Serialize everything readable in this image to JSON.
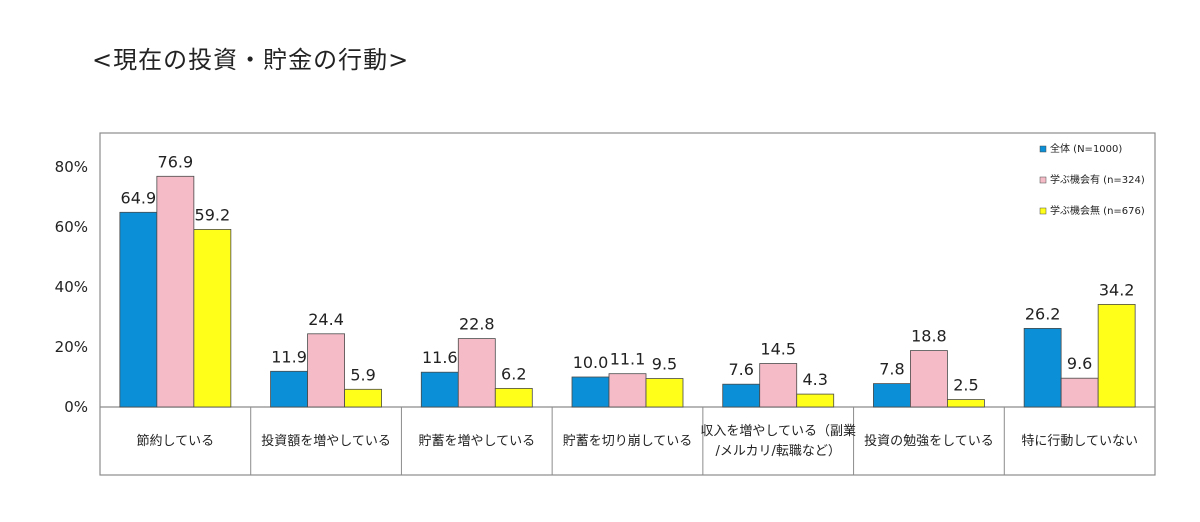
{
  "page_title": "<現在の投資・貯金の行動>",
  "chart_data": {
    "type": "bar",
    "ylim": [
      0,
      100
    ],
    "yticks": [
      0,
      20,
      40,
      60,
      80
    ],
    "ytick_labels": [
      "0%",
      "20%",
      "40%",
      "60%",
      "80%"
    ],
    "grid": false,
    "legend_position": "top-right",
    "categories": [
      [
        "節約している"
      ],
      [
        "投資額を増やしている"
      ],
      [
        "貯蓄を増やしている"
      ],
      [
        "貯蓄を切り崩している"
      ],
      [
        "収入を増やしている（副業",
        "/メルカリ/転職など）"
      ],
      [
        "投資の勉強をしている"
      ],
      [
        "特に行動していない"
      ]
    ],
    "series": [
      {
        "name": "全体 (N=1000)",
        "color": "#0b8fd6",
        "values": [
          64.9,
          11.9,
          11.6,
          10.0,
          7.6,
          7.8,
          26.2
        ],
        "labels": [
          "64.9",
          "11.9",
          "11.6",
          "10.0",
          "7.6",
          "7.8",
          "26.2"
        ]
      },
      {
        "name": "学ぶ機会有 (n=324)",
        "color": "#f5bcc8",
        "values": [
          76.9,
          24.4,
          22.8,
          11.1,
          14.5,
          18.8,
          9.6
        ],
        "labels": [
          "76.9",
          "24.4",
          "22.8",
          "11.1",
          "14.5",
          "18.8",
          "9.6"
        ]
      },
      {
        "name": "学ぶ機会無 (n=676)",
        "color": "#ffff1a",
        "values": [
          59.2,
          5.9,
          6.2,
          9.5,
          4.3,
          2.5,
          34.2
        ],
        "labels": [
          "59.2",
          "5.9",
          "6.2",
          "9.5",
          "4.3",
          "2.5",
          "34.2"
        ]
      }
    ]
  }
}
